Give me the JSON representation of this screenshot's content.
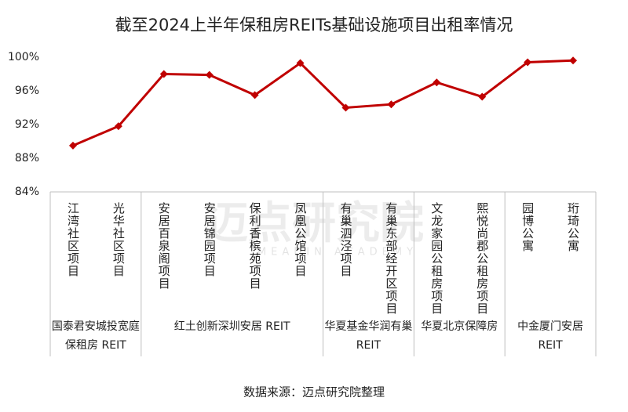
{
  "title": "截至2024上半年保租房REITs基础设施项目出租率情况",
  "source": "数据来源：迈点研究院整理",
  "watermark": {
    "name": "迈点研究院",
    "subtitle": "MEADIN ACADEMY"
  },
  "chart_data": {
    "type": "line",
    "groups": [
      {
        "name": "国泰君安城投宽庭保租房 REIT",
        "categories": [
          "江湾社区项目",
          "光华社区项目"
        ]
      },
      {
        "name": "红土创新深圳安居 REIT",
        "categories": [
          "安居百泉阁项目",
          "安居锦园项目",
          "保利香槟苑项目",
          "凤凰公馆项目"
        ]
      },
      {
        "name": "华夏基金华润有巢 REIT",
        "categories": [
          "有巢泗泾项目",
          "有巢东部经开区项目"
        ]
      },
      {
        "name": "华夏北京保障房",
        "categories": [
          "文龙家园公租房项目",
          "熙悦尚郡公租房项目"
        ]
      },
      {
        "name": "中金厦门安居 REIT",
        "categories": [
          "园博公寓",
          "珩琦公寓"
        ]
      }
    ],
    "values": [
      89.5,
      91.8,
      98.0,
      97.9,
      95.5,
      99.3,
      94.0,
      94.4,
      97.0,
      95.3,
      99.4,
      99.6
    ],
    "color": "#c00000",
    "ylim": [
      84,
      100
    ],
    "yticks": [
      {
        "value": 84,
        "label": "84%"
      },
      {
        "value": 88,
        "label": "88%"
      },
      {
        "value": 92,
        "label": "92%"
      },
      {
        "value": 96,
        "label": "96%"
      },
      {
        "value": 100,
        "label": "100%"
      }
    ]
  }
}
